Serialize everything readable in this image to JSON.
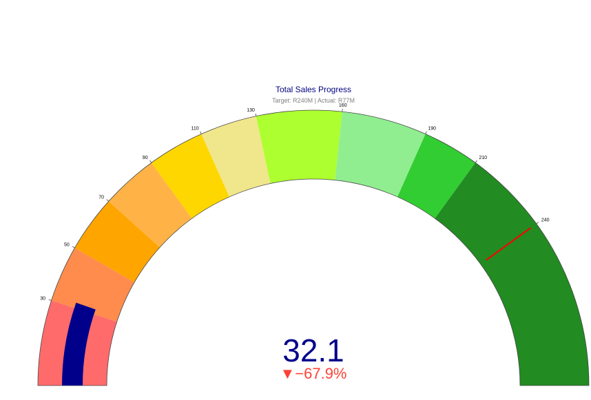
{
  "chart_data": {
    "type": "gauge",
    "title": "Total Sales Progress",
    "subtitle": "Target: R240M | Actual: R77M",
    "range": [
      0,
      240
    ],
    "value": 32.1,
    "value_text": "32.1",
    "delta_text": "▼−67.9%",
    "threshold": 240,
    "threshold_color": "#ff0000",
    "bar_color": "#00008b",
    "ticks": [
      {
        "value": 30,
        "label": "30"
      },
      {
        "value": 50,
        "label": "50"
      },
      {
        "value": 70,
        "label": "70"
      },
      {
        "value": 90,
        "label": "90"
      },
      {
        "value": 110,
        "label": "110"
      },
      {
        "value": 130,
        "label": "130"
      },
      {
        "value": 160,
        "label": "160"
      },
      {
        "value": 190,
        "label": "190"
      },
      {
        "value": 210,
        "label": "210"
      },
      {
        "value": 240,
        "label": "240"
      }
    ],
    "bands": [
      {
        "from": 0,
        "to": 30,
        "color": "#ff6b6b"
      },
      {
        "from": 30,
        "to": 50,
        "color": "#ff8c4d"
      },
      {
        "from": 50,
        "to": 70,
        "color": "#ffa500"
      },
      {
        "from": 70,
        "to": 90,
        "color": "#ffb347"
      },
      {
        "from": 90,
        "to": 110,
        "color": "#ffd700"
      },
      {
        "from": 110,
        "to": 130,
        "color": "#f0e68c"
      },
      {
        "from": 130,
        "to": 160,
        "color": "#adff2f"
      },
      {
        "from": 160,
        "to": 190,
        "color": "#90ee90"
      },
      {
        "from": 190,
        "to": 210,
        "color": "#32cd32"
      },
      {
        "from": 210,
        "to": 300,
        "color": "#228b22"
      }
    ]
  }
}
